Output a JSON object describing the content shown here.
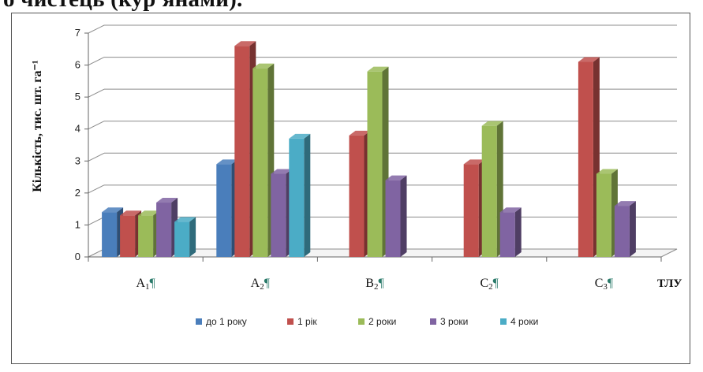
{
  "caption_fragment": "о чистець (кур'янами).",
  "chart_data": {
    "type": "bar",
    "categories": [
      {
        "base": "A",
        "sub": "1",
        "mark": "¶"
      },
      {
        "base": "A",
        "sub": "2",
        "mark": "¶"
      },
      {
        "base": "B",
        "sub": "2",
        "mark": "¶"
      },
      {
        "base": "C",
        "sub": "2",
        "mark": "¶"
      },
      {
        "base": "C",
        "sub": "3",
        "mark": "¶"
      }
    ],
    "series": [
      {
        "name": "до 1 року",
        "color": "#4a7ebb",
        "values": [
          1.4,
          2.9,
          null,
          null,
          null
        ]
      },
      {
        "name": "1 рік",
        "color": "#c0504d",
        "values": [
          1.3,
          6.6,
          3.8,
          2.9,
          6.1
        ]
      },
      {
        "name": "2 роки",
        "color": "#9bbb59",
        "values": [
          1.3,
          5.9,
          5.8,
          4.1,
          2.6
        ]
      },
      {
        "name": "3 роки",
        "color": "#8064a2",
        "values": [
          1.7,
          2.6,
          2.4,
          1.4,
          1.6
        ]
      },
      {
        "name": "4 роки",
        "color": "#4bacc6",
        "values": [
          1.1,
          3.7,
          null,
          null,
          null
        ]
      }
    ],
    "xlabel": "ТЛУ",
    "ylabel": "Кількість, тис. шт. га⁻¹",
    "ylim": [
      0,
      7
    ],
    "yticks": [
      "0",
      "1",
      "2",
      "3",
      "4",
      "5",
      "6",
      "7"
    ],
    "grid": true,
    "legend_position": "bottom"
  }
}
